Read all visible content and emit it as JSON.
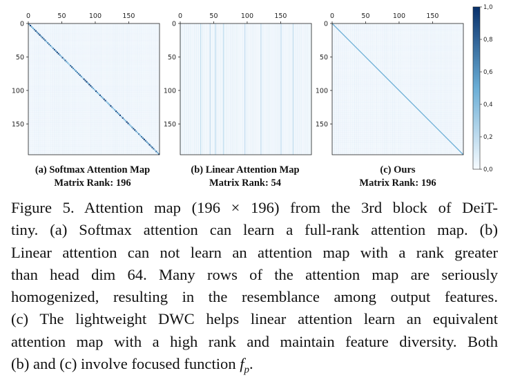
{
  "figure": {
    "panels": [
      {
        "id": "a",
        "label": "(a) Softmax Attention Map",
        "rank": "Matrix Rank: 196",
        "style": "softmax"
      },
      {
        "id": "b",
        "label": "(b) Linear Attention Map",
        "rank": "Matrix Rank: 54",
        "style": "linear"
      },
      {
        "id": "c",
        "label": "(c) Ours",
        "rank": "Matrix Rank: 196",
        "style": "ours"
      }
    ],
    "axis_ticks": [
      "0",
      "50",
      "100",
      "150"
    ],
    "colorbar": {
      "ticks": [
        "0,0",
        "0,2",
        "0,4",
        "0,6",
        "0,8",
        "1,0"
      ],
      "colormap_low": "#f7fbff",
      "colormap_high": "#08306b"
    }
  },
  "caption": {
    "lines": [
      "Figure 5. Attention map (196 × 196) from the 3rd block of DeiT-",
      "tiny. (a) Softmax attention can learn a full-rank attention map. (b)",
      "Linear attention can not learn an attention map with a rank greater",
      "than head dim 64.  Many rows of the attention map are seriously",
      "homogenized, resulting in the resemblance among output features.",
      "(c) The lightweight DWC helps linear attention learn an equivalent",
      "attention map with a high rank and maintain feature diversity. Both",
      "(b) and (c) involve focused function "
    ],
    "math_symbol": "f",
    "math_sub": "p",
    "end": "."
  }
}
